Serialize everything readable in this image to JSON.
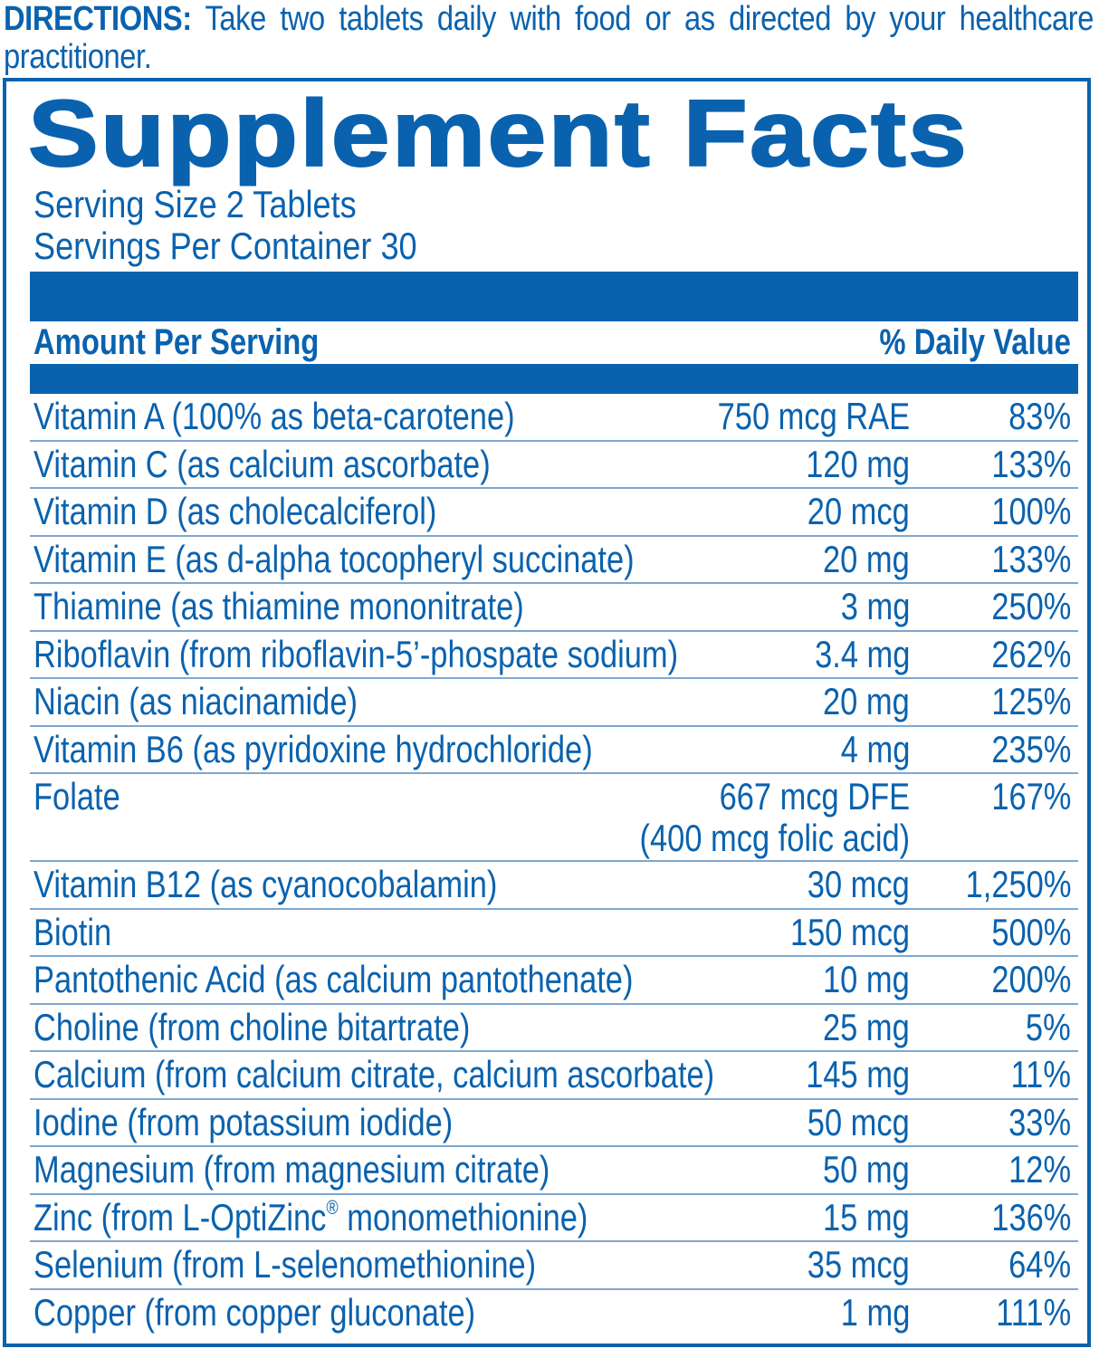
{
  "directions": {
    "label": "DIRECTIONS:",
    "text": "Take two tablets daily with food or as directed by your healthcare practitioner."
  },
  "facts": {
    "title": "Supplement Facts",
    "serving_size": "Serving Size 2 Tablets",
    "servings_per_container": "Servings Per Container 30",
    "header_left": "Amount Per Serving",
    "header_right": "% Daily Value",
    "colors": {
      "primary": "#0a62ae",
      "row_divider": "#7fa7cf",
      "background": "#ffffff"
    },
    "rows": [
      {
        "name": "Vitamin A (100% as beta-carotene)",
        "amount": "750 mcg RAE",
        "dv": "83%"
      },
      {
        "name": "Vitamin C (as calcium ascorbate)",
        "amount": "120 mg",
        "dv": "133%"
      },
      {
        "name": "Vitamin D (as cholecalciferol)",
        "amount": "20 mcg",
        "dv": "100%"
      },
      {
        "name": "Vitamin E (as d-alpha tocopheryl succinate)",
        "amount": "20 mg",
        "dv": "133%"
      },
      {
        "name": "Thiamine (as thiamine mononitrate)",
        "amount": "3 mg",
        "dv": "250%"
      },
      {
        "name": "Riboflavin (from riboflavin-5’-phospate sodium)",
        "amount": "3.4 mg",
        "dv": "262%"
      },
      {
        "name": "Niacin (as niacinamide)",
        "amount": "20 mg",
        "dv": "125%"
      },
      {
        "name": "Vitamin B6 (as pyridoxine hydrochloride)",
        "amount": "4 mg",
        "dv": "235%"
      },
      {
        "name": "Folate",
        "amount": "667 mcg DFE",
        "amount_sub": "(400 mcg folic acid)",
        "dv": "167%"
      },
      {
        "name": "Vitamin B12 (as cyanocobalamin)",
        "amount": "30 mcg",
        "dv": "1,250%"
      },
      {
        "name": "Biotin",
        "amount": "150 mcg",
        "dv": "500%"
      },
      {
        "name": "Pantothenic Acid (as calcium pantothenate)",
        "amount": "10 mg",
        "dv": "200%"
      },
      {
        "name": "Choline (from choline bitartrate)",
        "amount": "25 mg",
        "dv": "5%"
      },
      {
        "name": "Calcium (from calcium citrate, calcium ascorbate)",
        "amount": "145 mg",
        "dv": "11%"
      },
      {
        "name": "Iodine (from potassium iodide)",
        "amount": "50 mcg",
        "dv": "33%"
      },
      {
        "name": "Magnesium (from magnesium citrate)",
        "amount": "50 mg",
        "dv": "12%"
      },
      {
        "name_prefix": "Zinc (from L-OptiZinc",
        "name_mark": "®",
        "name_suffix": " monomethionine)",
        "amount": "15 mg",
        "dv": "136%"
      },
      {
        "name": "Selenium (from L-selenomethionine)",
        "amount": "35 mcg",
        "dv": "64%"
      },
      {
        "name": "Copper (from copper gluconate)",
        "amount": "1 mg",
        "dv": "111%"
      }
    ]
  }
}
